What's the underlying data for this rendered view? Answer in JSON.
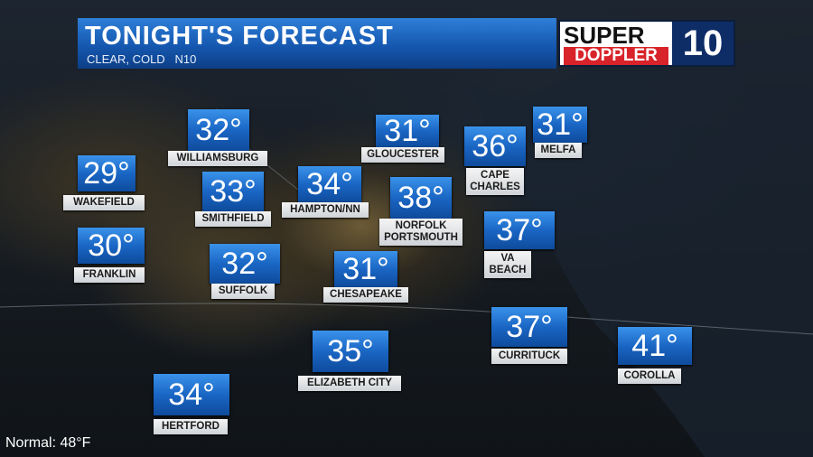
{
  "header": {
    "title": "TONIGHT'S FORECAST",
    "subtitle": "CLEAR, COLD   N10"
  },
  "logo": {
    "top": "SUPER",
    "bottom": "DOPPLER",
    "number": "10"
  },
  "cities": [
    {
      "temp": "32°",
      "name": [
        "WILLIAMSBURG"
      ]
    },
    {
      "temp": "31°",
      "name": [
        "GLOUCESTER"
      ]
    },
    {
      "temp": "36°",
      "name": [
        "CAPE",
        "CHARLES"
      ]
    },
    {
      "temp": "31°",
      "name": [
        "MELFA"
      ]
    },
    {
      "temp": "29°",
      "name": [
        "WAKEFIELD"
      ]
    },
    {
      "temp": "33°",
      "name": [
        "SMITHFIELD"
      ]
    },
    {
      "temp": "34°",
      "name": [
        "HAMPTON/NN"
      ]
    },
    {
      "temp": "38°",
      "name": [
        "NORFOLK",
        "PORTSMOUTH"
      ]
    },
    {
      "temp": "37°",
      "name": [
        "VA BEACH"
      ]
    },
    {
      "temp": "30°",
      "name": [
        "FRANKLIN"
      ]
    },
    {
      "temp": "32°",
      "name": [
        "SUFFOLK"
      ]
    },
    {
      "temp": "31°",
      "name": [
        "CHESAPEAKE"
      ]
    },
    {
      "temp": "37°",
      "name": [
        "CURRITUCK"
      ]
    },
    {
      "temp": "41°",
      "name": [
        "COROLLA"
      ]
    },
    {
      "temp": "35°",
      "name": [
        "ELIZABETH CITY"
      ]
    },
    {
      "temp": "34°",
      "name": [
        "HERTFORD"
      ]
    }
  ],
  "footer": "Normal: 48°F"
}
